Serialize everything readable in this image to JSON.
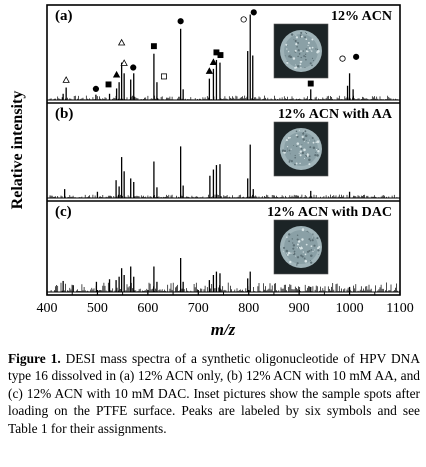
{
  "chart_data": {
    "type": "line",
    "xlabel": "m/z",
    "ylabel": "Relative intensity",
    "xlim": [
      400,
      1100
    ],
    "x_ticks": [
      "400",
      "500",
      "600",
      "700",
      "800",
      "900",
      "1000",
      "1100"
    ],
    "panels": [
      {
        "letter": "(a)",
        "title": "12% ACN",
        "peaks": [
          {
            "x": 432,
            "y": 0.07
          },
          {
            "x": 438,
            "y": 0.14
          },
          {
            "x": 497,
            "y": 0.06
          },
          {
            "x": 524,
            "y": 0.07
          },
          {
            "x": 538,
            "y": 0.13
          },
          {
            "x": 543,
            "y": 0.2
          },
          {
            "x": 548,
            "y": 0.42
          },
          {
            "x": 553,
            "y": 0.3
          },
          {
            "x": 566,
            "y": 0.23
          },
          {
            "x": 572,
            "y": 0.3
          },
          {
            "x": 612,
            "y": 0.52
          },
          {
            "x": 618,
            "y": 0.2
          },
          {
            "x": 665,
            "y": 0.8
          },
          {
            "x": 670,
            "y": 0.12
          },
          {
            "x": 722,
            "y": 0.24
          },
          {
            "x": 730,
            "y": 0.35
          },
          {
            "x": 736,
            "y": 0.45
          },
          {
            "x": 743,
            "y": 0.42
          },
          {
            "x": 798,
            "y": 0.55
          },
          {
            "x": 803,
            "y": 0.96
          },
          {
            "x": 808,
            "y": 0.5
          },
          {
            "x": 923,
            "y": 0.12
          },
          {
            "x": 996,
            "y": 0.16
          },
          {
            "x": 1000,
            "y": 0.3
          },
          {
            "x": 1007,
            "y": 0.12
          }
        ],
        "labels": [
          {
            "x": 438,
            "y": 0.18,
            "symbol": "open-triangle"
          },
          {
            "x": 497,
            "y": 0.08,
            "symbol": "filled-circle"
          },
          {
            "x": 522,
            "y": 0.13,
            "symbol": "filled-square"
          },
          {
            "x": 538,
            "y": 0.24,
            "symbol": "filled-triangle"
          },
          {
            "x": 548,
            "y": 0.6,
            "symbol": "open-triangle"
          },
          {
            "x": 553,
            "y": 0.37,
            "symbol": "open-triangle"
          },
          {
            "x": 571,
            "y": 0.32,
            "symbol": "filled-circle"
          },
          {
            "x": 612,
            "y": 0.56,
            "symbol": "filled-square"
          },
          {
            "x": 632,
            "y": 0.22,
            "symbol": "open-square"
          },
          {
            "x": 665,
            "y": 0.84,
            "symbol": "filled-circle"
          },
          {
            "x": 722,
            "y": 0.28,
            "symbol": "filled-triangle"
          },
          {
            "x": 730,
            "y": 0.38,
            "symbol": "filled-triangle"
          },
          {
            "x": 736,
            "y": 0.49,
            "symbol": "filled-square"
          },
          {
            "x": 744,
            "y": 0.46,
            "symbol": "filled-square"
          },
          {
            "x": 790,
            "y": 0.86,
            "symbol": "open-circle"
          },
          {
            "x": 810,
            "y": 0.94,
            "symbol": "filled-circle"
          },
          {
            "x": 923,
            "y": 0.14,
            "symbol": "filled-square"
          },
          {
            "x": 986,
            "y": 0.42,
            "symbol": "open-circle"
          },
          {
            "x": 1013,
            "y": 0.44,
            "symbol": "filled-circle"
          }
        ]
      },
      {
        "letter": "(b)",
        "title": "12% ACN with AA",
        "peaks": [
          {
            "x": 435,
            "y": 0.1
          },
          {
            "x": 500,
            "y": 0.07
          },
          {
            "x": 537,
            "y": 0.2
          },
          {
            "x": 543,
            "y": 0.13
          },
          {
            "x": 548,
            "y": 0.46
          },
          {
            "x": 553,
            "y": 0.3
          },
          {
            "x": 566,
            "y": 0.22
          },
          {
            "x": 572,
            "y": 0.18
          },
          {
            "x": 612,
            "y": 0.41
          },
          {
            "x": 618,
            "y": 0.12
          },
          {
            "x": 665,
            "y": 0.58
          },
          {
            "x": 670,
            "y": 0.14
          },
          {
            "x": 723,
            "y": 0.25
          },
          {
            "x": 730,
            "y": 0.32
          },
          {
            "x": 736,
            "y": 0.37
          },
          {
            "x": 743,
            "y": 0.38
          },
          {
            "x": 798,
            "y": 0.22
          },
          {
            "x": 803,
            "y": 0.6
          },
          {
            "x": 809,
            "y": 0.1
          },
          {
            "x": 923,
            "y": 0.08
          },
          {
            "x": 1000,
            "y": 0.07
          }
        ]
      },
      {
        "letter": "(c)",
        "title": "12% ACN with DAC",
        "peaks": [
          {
            "x": 432,
            "y": 0.13
          },
          {
            "x": 452,
            "y": 0.08
          },
          {
            "x": 498,
            "y": 0.12
          },
          {
            "x": 524,
            "y": 0.15
          },
          {
            "x": 537,
            "y": 0.14
          },
          {
            "x": 543,
            "y": 0.18
          },
          {
            "x": 548,
            "y": 0.28
          },
          {
            "x": 553,
            "y": 0.2
          },
          {
            "x": 566,
            "y": 0.3
          },
          {
            "x": 572,
            "y": 0.18
          },
          {
            "x": 612,
            "y": 0.3
          },
          {
            "x": 618,
            "y": 0.12
          },
          {
            "x": 665,
            "y": 0.4
          },
          {
            "x": 670,
            "y": 0.12
          },
          {
            "x": 722,
            "y": 0.14
          },
          {
            "x": 730,
            "y": 0.2
          },
          {
            "x": 736,
            "y": 0.24
          },
          {
            "x": 743,
            "y": 0.22
          },
          {
            "x": 798,
            "y": 0.16
          },
          {
            "x": 803,
            "y": 0.24
          },
          {
            "x": 923,
            "y": 0.06
          },
          {
            "x": 1000,
            "y": 0.06
          }
        ]
      }
    ]
  },
  "caption": {
    "label": "Figure 1.",
    "text": " DESI mass spectra of a synthetic oligonucleotide of HPV DNA type 16 dissolved in (a) 12% ACN only, (b) 12% ACN with 10 mM AA, and (c) 12% ACN with 10 mM DAC. Inset pictures show the sample spots after loading on the PTFE surface. Peaks are labeled by six symbols and see Table 1 for their assignments."
  }
}
